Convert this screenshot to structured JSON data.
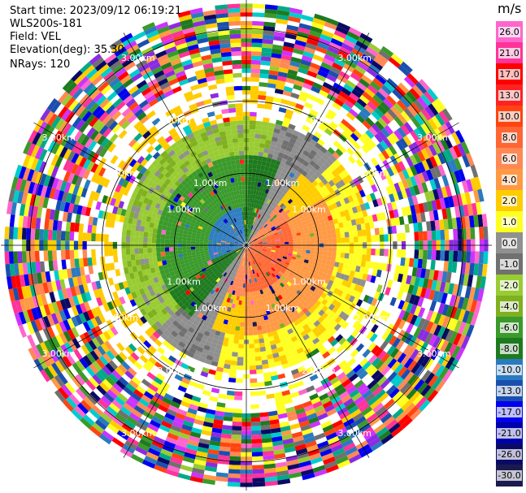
{
  "header": {
    "start_time": "Start time: 2023/09/12 06:19:21",
    "instrument": "WLS200s-181",
    "field": "Field: VEL",
    "elevation": "Elevation(deg): 35.30",
    "nrays": "NRays: 120"
  },
  "colorbar": {
    "unit": "m/s",
    "ticks": [
      "26.0",
      "21.0",
      "17.0",
      "13.0",
      "10.0",
      "8.0",
      "6.0",
      "4.0",
      "2.0",
      "1.0",
      "0.0",
      "-1.0",
      "-2.0",
      "-4.0",
      "-6.0",
      "-8.0",
      "-10.0",
      "-13.0",
      "-17.0",
      "-21.0",
      "-26.0",
      "-30.0"
    ],
    "colors": [
      "#ff66cc",
      "#ff3399",
      "#ff0000",
      "#ff2222",
      "#ff4411",
      "#ff6633",
      "#ff8855",
      "#ff9944",
      "#ffcc00",
      "#ffff22",
      "#909090",
      "#707070",
      "#99cc33",
      "#7fb020",
      "#3a9a2a",
      "#1e7a1e",
      "#2a7ac0",
      "#1a4fb0",
      "#0000ee",
      "#0000aa",
      "#0a0a66",
      "#1a1a50"
    ]
  },
  "chart_data": {
    "type": "ppi",
    "field": "VEL",
    "units": "m/s",
    "n_rays": 120,
    "range_rings_km": [
      1.0,
      2.0,
      3.0
    ],
    "ring_labels": [
      "1.00km",
      "2.00km",
      "3.00km"
    ],
    "value_range": [
      -30.0,
      26.0
    ]
  }
}
